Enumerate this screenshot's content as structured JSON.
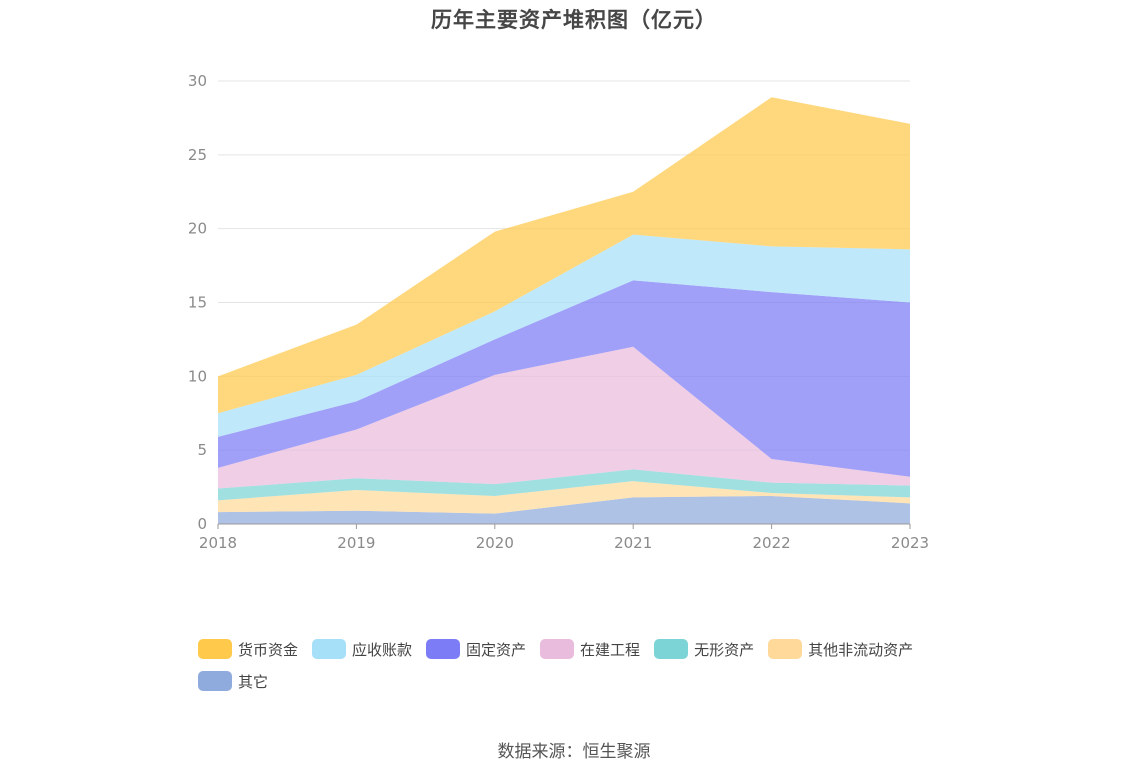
{
  "chart_data": {
    "type": "area",
    "stacked": true,
    "title": "历年主要资产堆积图（亿元）",
    "source": "数据来源：恒生聚源",
    "x": [
      "2018",
      "2019",
      "2020",
      "2021",
      "2022",
      "2023"
    ],
    "ylim": [
      0,
      30
    ],
    "yticks": [
      0,
      5,
      10,
      15,
      20,
      25,
      30
    ],
    "grid": true,
    "legend_position": "bottom",
    "series": [
      {
        "name": "其它",
        "color": "#8FAADC",
        "values": [
          0.8,
          0.9,
          0.7,
          1.8,
          1.9,
          1.4
        ]
      },
      {
        "name": "其他非流动资产",
        "color": "#FFD99A",
        "values": [
          0.8,
          1.4,
          1.2,
          1.1,
          0.2,
          0.4
        ]
      },
      {
        "name": "无形资产",
        "color": "#7DD4D6",
        "values": [
          0.8,
          0.8,
          0.8,
          0.8,
          0.7,
          0.8
        ]
      },
      {
        "name": "在建工程",
        "color": "#E9BBDC",
        "values": [
          1.4,
          3.3,
          7.4,
          8.3,
          1.6,
          0.6
        ]
      },
      {
        "name": "固定资产",
        "color": "#7C7CF6",
        "values": [
          2.1,
          1.9,
          2.4,
          4.5,
          11.3,
          11.8
        ]
      },
      {
        "name": "应收账款",
        "color": "#A6DFF8",
        "values": [
          1.6,
          1.8,
          1.9,
          3.1,
          3.1,
          3.6
        ]
      },
      {
        "name": "货币资金",
        "color": "#FFC94C",
        "values": [
          2.5,
          3.4,
          5.4,
          2.9,
          10.1,
          8.5
        ]
      }
    ],
    "legend_order": [
      "货币资金",
      "应收账款",
      "固定资产",
      "在建工程",
      "无形资产",
      "其他非流动资产",
      "其它"
    ]
  }
}
